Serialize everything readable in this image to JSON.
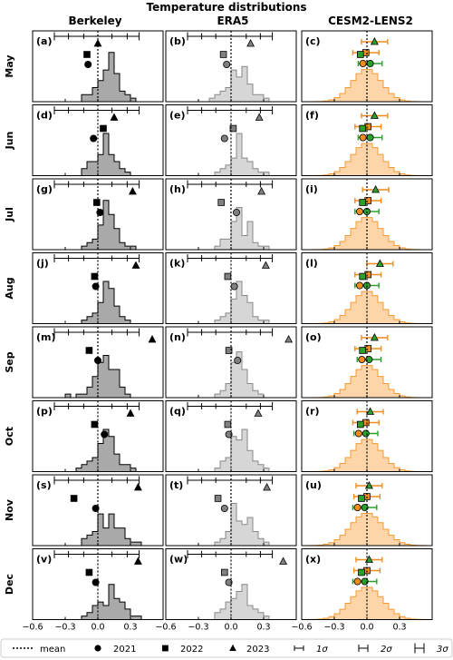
{
  "title": "Temperature distributions",
  "columns": [
    "Berkeley",
    "ERA5",
    "CESM2-LENS2"
  ],
  "months": [
    "May",
    "Jun",
    "Jul",
    "Aug",
    "Sep",
    "Oct",
    "Nov",
    "Dec"
  ],
  "panel_letters": [
    [
      "(a)",
      "(b)",
      "(c)"
    ],
    [
      "(d)",
      "(e)",
      "(f)"
    ],
    [
      "(g)",
      "(h)",
      "(i)"
    ],
    [
      "(j)",
      "(k)",
      "(l)"
    ],
    [
      "(m)",
      "(n)",
      "(o)"
    ],
    [
      "(p)",
      "(q)",
      "(r)"
    ],
    [
      "(s)",
      "(t)",
      "(u)"
    ],
    [
      "(v)",
      "(w)",
      "(x)"
    ]
  ],
  "legend": {
    "mean": "mean",
    "y2021": "2021",
    "y2022": "2022",
    "y2023": "2023",
    "s1": "1σ",
    "s2": "2σ",
    "s3": "3σ"
  },
  "colors": {
    "berkeley_fill": "#a9a9a9",
    "era5_fill": "#d6d6d6",
    "era5_edge": "#888888",
    "lens_fill": "#fdd5a8",
    "lens_edge": "#f39a35",
    "err_2021": "#f08c1e",
    "err_2022": "#2ca02c",
    "err_2023": "#f08c1e",
    "marker_2021_lens": "#f08c1e",
    "marker_2022_lens": "#2ca02c",
    "marker_obs": "#000000",
    "marker_era5": "#808080"
  },
  "chart_data": {
    "type": "histogram-grid",
    "xlim": [
      -0.6,
      0.6
    ],
    "xticks": [
      -0.6,
      -0.3,
      0.0,
      0.3
    ],
    "xtick_labels": [
      "−0.6",
      "−0.3",
      "0.0",
      "0.3"
    ],
    "bin_start": -0.35,
    "bin_width": 0.05,
    "berkeley_counts": [
      [
        0,
        0,
        0,
        0,
        2,
        2,
        4,
        6,
        9,
        14,
        8,
        3,
        2,
        1,
        0
      ],
      [
        0,
        0,
        0,
        0,
        2,
        4,
        4,
        6,
        12,
        6,
        4,
        2,
        1,
        0,
        0
      ],
      [
        0,
        0,
        0,
        0,
        1,
        2,
        3,
        7,
        14,
        10,
        6,
        2,
        1,
        1,
        0
      ],
      [
        0,
        0,
        0,
        0,
        1,
        2,
        3,
        6,
        12,
        10,
        5,
        2,
        1,
        0,
        0
      ],
      [
        0,
        1,
        0,
        1,
        1,
        3,
        6,
        10,
        12,
        8,
        8,
        3,
        1,
        0,
        0
      ],
      [
        0,
        0,
        0,
        1,
        2,
        3,
        4,
        8,
        12,
        10,
        5,
        2,
        2,
        1,
        0
      ],
      [
        0,
        0,
        0,
        0,
        2,
        3,
        4,
        9,
        5,
        9,
        5,
        5,
        2,
        1,
        1
      ],
      [
        0,
        0,
        0,
        0,
        1,
        2,
        4,
        5,
        4,
        10,
        6,
        5,
        3,
        1,
        1
      ]
    ],
    "berkeley_ymax": 16,
    "era5_counts": [
      [
        0,
        0,
        0,
        1,
        2,
        3,
        4,
        9,
        7,
        10,
        5,
        2,
        2,
        1,
        0
      ],
      [
        0,
        0,
        0,
        0,
        1,
        2,
        3,
        5,
        12,
        5,
        4,
        2,
        1,
        1,
        0
      ],
      [
        0,
        0,
        0,
        0,
        1,
        3,
        3,
        8,
        12,
        4,
        8,
        2,
        1,
        1,
        0
      ],
      [
        0,
        0,
        0,
        0,
        1,
        2,
        3,
        7,
        12,
        8,
        6,
        2,
        1,
        1,
        0
      ],
      [
        0,
        0,
        0,
        0,
        1,
        2,
        4,
        10,
        13,
        8,
        4,
        2,
        1,
        0,
        0
      ],
      [
        0,
        0,
        0,
        0,
        1,
        3,
        4,
        10,
        9,
        12,
        6,
        3,
        2,
        1,
        0
      ],
      [
        0,
        0,
        0,
        0,
        1,
        2,
        4,
        12,
        7,
        6,
        8,
        4,
        2,
        1,
        0
      ],
      [
        0,
        0,
        0,
        0,
        2,
        3,
        5,
        6,
        8,
        10,
        4,
        3,
        2,
        1,
        0
      ]
    ],
    "era5_ymax": 16,
    "lens_sigma": [
      0.1,
      0.1,
      0.1,
      0.1,
      0.1,
      0.1,
      0.11,
      0.11
    ],
    "lens_mean": [
      0.0,
      0.0,
      0.0,
      0.0,
      0.0,
      0.0,
      0.0,
      0.0
    ],
    "obs_points": {
      "berkeley": {
        "y2021": [
          -0.09,
          -0.04,
          0.02,
          -0.02,
          0.0,
          0.06,
          -0.02,
          -0.02
        ],
        "y2022": [
          -0.1,
          0.05,
          -0.01,
          -0.03,
          -0.08,
          -0.03,
          -0.22,
          -0.08
        ],
        "y2023": [
          0.0,
          0.15,
          0.32,
          0.35,
          0.5,
          0.3,
          0.37,
          0.37
        ]
      },
      "era5": {
        "y2021": [
          -0.04,
          -0.06,
          0.05,
          0.03,
          0.06,
          -0.02,
          -0.06,
          -0.02
        ],
        "y2022": [
          -0.07,
          0.02,
          -0.09,
          -0.03,
          -0.02,
          -0.03,
          -0.12,
          -0.06
        ],
        "y2023": [
          0.18,
          0.26,
          0.28,
          0.32,
          0.53,
          0.25,
          0.33,
          0.48
        ]
      }
    },
    "lens_points": {
      "y2021": [
        0.03,
        0.03,
        0.0,
        0.0,
        0.02,
        -0.01,
        -0.02,
        -0.02
      ],
      "y2022": [
        -0.01,
        0.01,
        0.01,
        0.01,
        0.01,
        -0.01,
        0.0,
        0.0
      ],
      "y2023": [
        0.07,
        0.07,
        0.08,
        0.12,
        0.07,
        0.03,
        0.02,
        0.02
      ]
    },
    "obs_hbars": {
      "berkeley": {
        "lo1": -0.13,
        "hi1": 0.13,
        "lo2": -0.27,
        "hi2": 0.27,
        "lo3": -0.4,
        "hi3": 0.38
      },
      "era5": {
        "lo1": -0.14,
        "hi1": 0.14,
        "lo2": -0.27,
        "hi2": 0.27,
        "lo3": -0.4,
        "hi3": 0.38
      }
    }
  }
}
